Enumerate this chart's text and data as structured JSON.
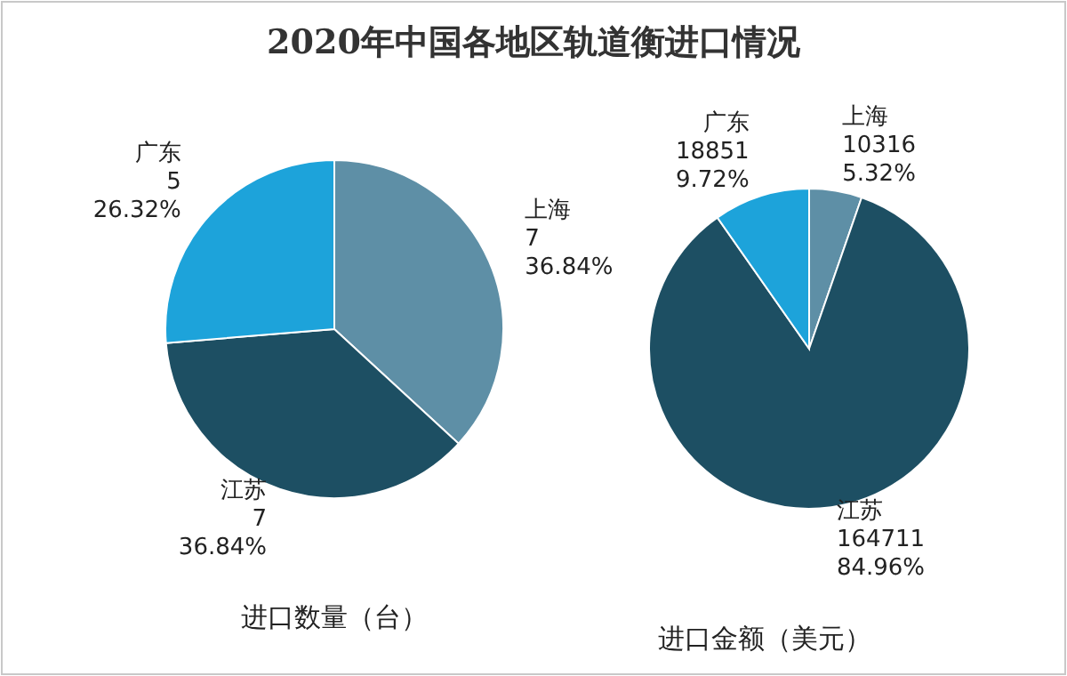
{
  "chart_data": [
    {
      "type": "pie",
      "title": "2020年中国各地区轨道衡进口情况",
      "xlabel": "进口数量（台）",
      "categories": [
        "上海",
        "江苏",
        "广东"
      ],
      "values": [
        7,
        7,
        5
      ],
      "colors": [
        "#5e8fa6",
        "#1d4f63",
        "#1da3da"
      ],
      "value_labels": [
        "7\n36.84%",
        "7\n36.84%",
        "5\n26.32%"
      ]
    },
    {
      "type": "pie",
      "xlabel": "进口金额（美元）",
      "categories": [
        "上海",
        "江苏",
        "广东"
      ],
      "values": [
        10316,
        164711,
        18851
      ],
      "colors": [
        "#5e8fa6",
        "#1d4f63",
        "#1da3da"
      ],
      "value_labels": [
        "10316\n5.32%",
        "164711\n84.96%",
        "18851\n9.72%"
      ]
    }
  ]
}
